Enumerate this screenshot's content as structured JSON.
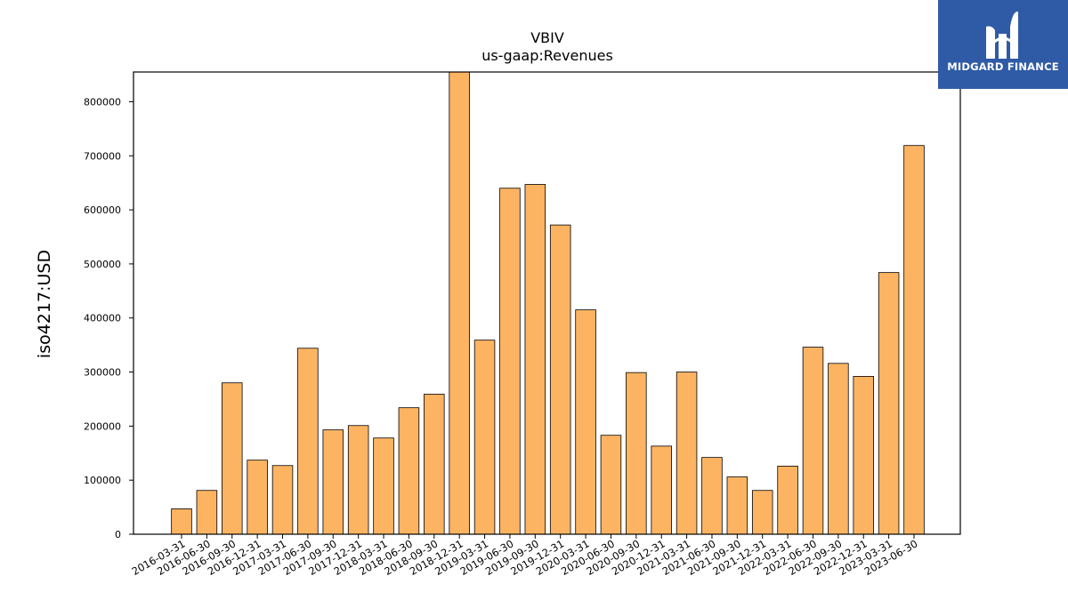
{
  "chart_data": {
    "type": "bar",
    "title": "VBIV",
    "subtitle": "us-gaap:Revenues",
    "xlabel": "",
    "ylabel": "iso4217:USD",
    "ylim": [
      0,
      855000
    ],
    "yticks": [
      0,
      100000,
      200000,
      300000,
      400000,
      500000,
      600000,
      700000,
      800000
    ],
    "bar_color": "#fdb462",
    "edge_color": "#000000",
    "grid": false,
    "categories": [
      "2016-03-31",
      "2016-06-30",
      "2016-09-30",
      "2016-12-31",
      "2017-03-31",
      "2017-06-30",
      "2017-09-30",
      "2017-12-31",
      "2018-03-31",
      "2018-06-30",
      "2018-09-30",
      "2018-12-31",
      "2019-03-31",
      "2019-06-30",
      "2019-09-30",
      "2019-12-31",
      "2020-03-31",
      "2020-06-30",
      "2020-09-30",
      "2020-12-31",
      "2021-03-31",
      "2021-06-30",
      "2021-09-30",
      "2021-12-31",
      "2022-03-31",
      "2022-06-30",
      "2022-09-30",
      "2022-12-31",
      "2023-03-31",
      "2023-06-30"
    ],
    "values": [
      47000,
      81000,
      280000,
      137000,
      127000,
      344000,
      193000,
      201000,
      178000,
      234000,
      259000,
      870000,
      359000,
      640000,
      647000,
      572000,
      415000,
      183000,
      299000,
      163000,
      300000,
      142000,
      106000,
      81000,
      126000,
      346000,
      316000,
      292000,
      484000,
      719000
    ]
  },
  "logo": {
    "text": "MIDGARD FINANCE",
    "color": "#2f5ba6"
  }
}
